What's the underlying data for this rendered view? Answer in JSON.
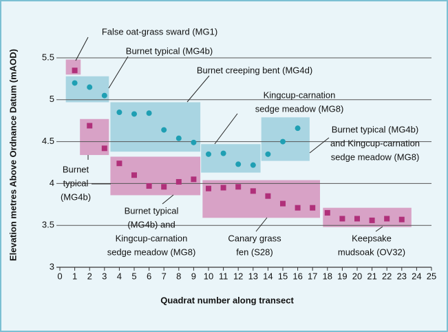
{
  "chart_data": {
    "type": "scatter",
    "y_label": "Elevation metres Above Ordnance Datum (mAOD)",
    "x_label": "Quadrat number along transect",
    "x": [
      1,
      2,
      3,
      4,
      5,
      6,
      7,
      8,
      9,
      10,
      11,
      12,
      13,
      14,
      15,
      16,
      17,
      18,
      19,
      20,
      21,
      22,
      23
    ],
    "series": [
      {
        "color": "#1f9fb3",
        "marker": "circle",
        "values": [
          5.2,
          5.15,
          5.05,
          4.85,
          4.83,
          4.84,
          4.64,
          4.54,
          4.49,
          4.35,
          4.36,
          4.23,
          4.22,
          4.35,
          4.5,
          4.66,
          null,
          null,
          null,
          null,
          null,
          null,
          null
        ]
      },
      {
        "color": "#b0307a",
        "marker": "square",
        "values": [
          5.35,
          4.69,
          4.42,
          4.24,
          4.1,
          3.97,
          3.96,
          4.02,
          4.05,
          3.94,
          3.95,
          3.96,
          3.91,
          3.85,
          3.76,
          3.71,
          3.71,
          3.65,
          3.58,
          3.58,
          3.56,
          3.58,
          3.57
        ]
      }
    ],
    "regions": [
      {
        "x": [
          0.4,
          1.4
        ],
        "y": [
          5.3,
          5.48
        ],
        "color": "#d8a2c6"
      },
      {
        "x": [
          0.4,
          3.3
        ],
        "y": [
          4.97,
          5.28
        ],
        "color": "#a9d5e2"
      },
      {
        "x": [
          3.4,
          9.45
        ],
        "y": [
          4.38,
          4.97
        ],
        "color": "#a9d5e2"
      },
      {
        "x": [
          1.35,
          3.3
        ],
        "y": [
          4.34,
          4.77
        ],
        "color": "#d8a2c6"
      },
      {
        "x": [
          3.4,
          9.45
        ],
        "y": [
          3.86,
          4.32
        ],
        "color": "#d8a2c6"
      },
      {
        "x": [
          9.5,
          13.5
        ],
        "y": [
          4.13,
          4.47
        ],
        "color": "#a9d5e2"
      },
      {
        "x": [
          13.55,
          16.8
        ],
        "y": [
          4.27,
          4.79
        ],
        "color": "#a9d5e2"
      },
      {
        "x": [
          9.6,
          17.5
        ],
        "y": [
          3.59,
          4.04
        ],
        "color": "#d8a2c6"
      },
      {
        "x": [
          17.7,
          23.65
        ],
        "y": [
          3.48,
          3.71
        ],
        "color": "#d8a2c6"
      }
    ],
    "annotations": [
      [
        "False oat-grass sward (MG1)"
      ],
      [
        "Burnet typical (MG4b)"
      ],
      [
        "Burnet creeping bent (MG4d)"
      ],
      [
        "Kingcup-carnation",
        "sedge meadow (MG8)"
      ],
      [
        "Burnet typical (MG4b)",
        "and Kingcup-carnation",
        "sedge meadow (MG8)"
      ],
      [
        "Burnet",
        "typical",
        "(MG4b)"
      ],
      [
        "Burnet typical",
        "(MG4b) and",
        "Kingcup-carnation",
        "sedge meadow (MG8)"
      ],
      [
        "Canary grass",
        "fen (S28)"
      ],
      [
        "Keepsake",
        "mudsoak (OV32)"
      ]
    ],
    "xlim": [
      0,
      25
    ],
    "ylim": [
      3,
      5.5
    ],
    "xticks": [
      0,
      1,
      2,
      3,
      4,
      5,
      6,
      7,
      8,
      9,
      10,
      11,
      12,
      13,
      14,
      15,
      16,
      17,
      18,
      19,
      20,
      21,
      22,
      23,
      24,
      25
    ],
    "yticks": [
      3,
      3.5,
      4,
      4.5,
      5,
      5.5
    ],
    "grid": true
  }
}
